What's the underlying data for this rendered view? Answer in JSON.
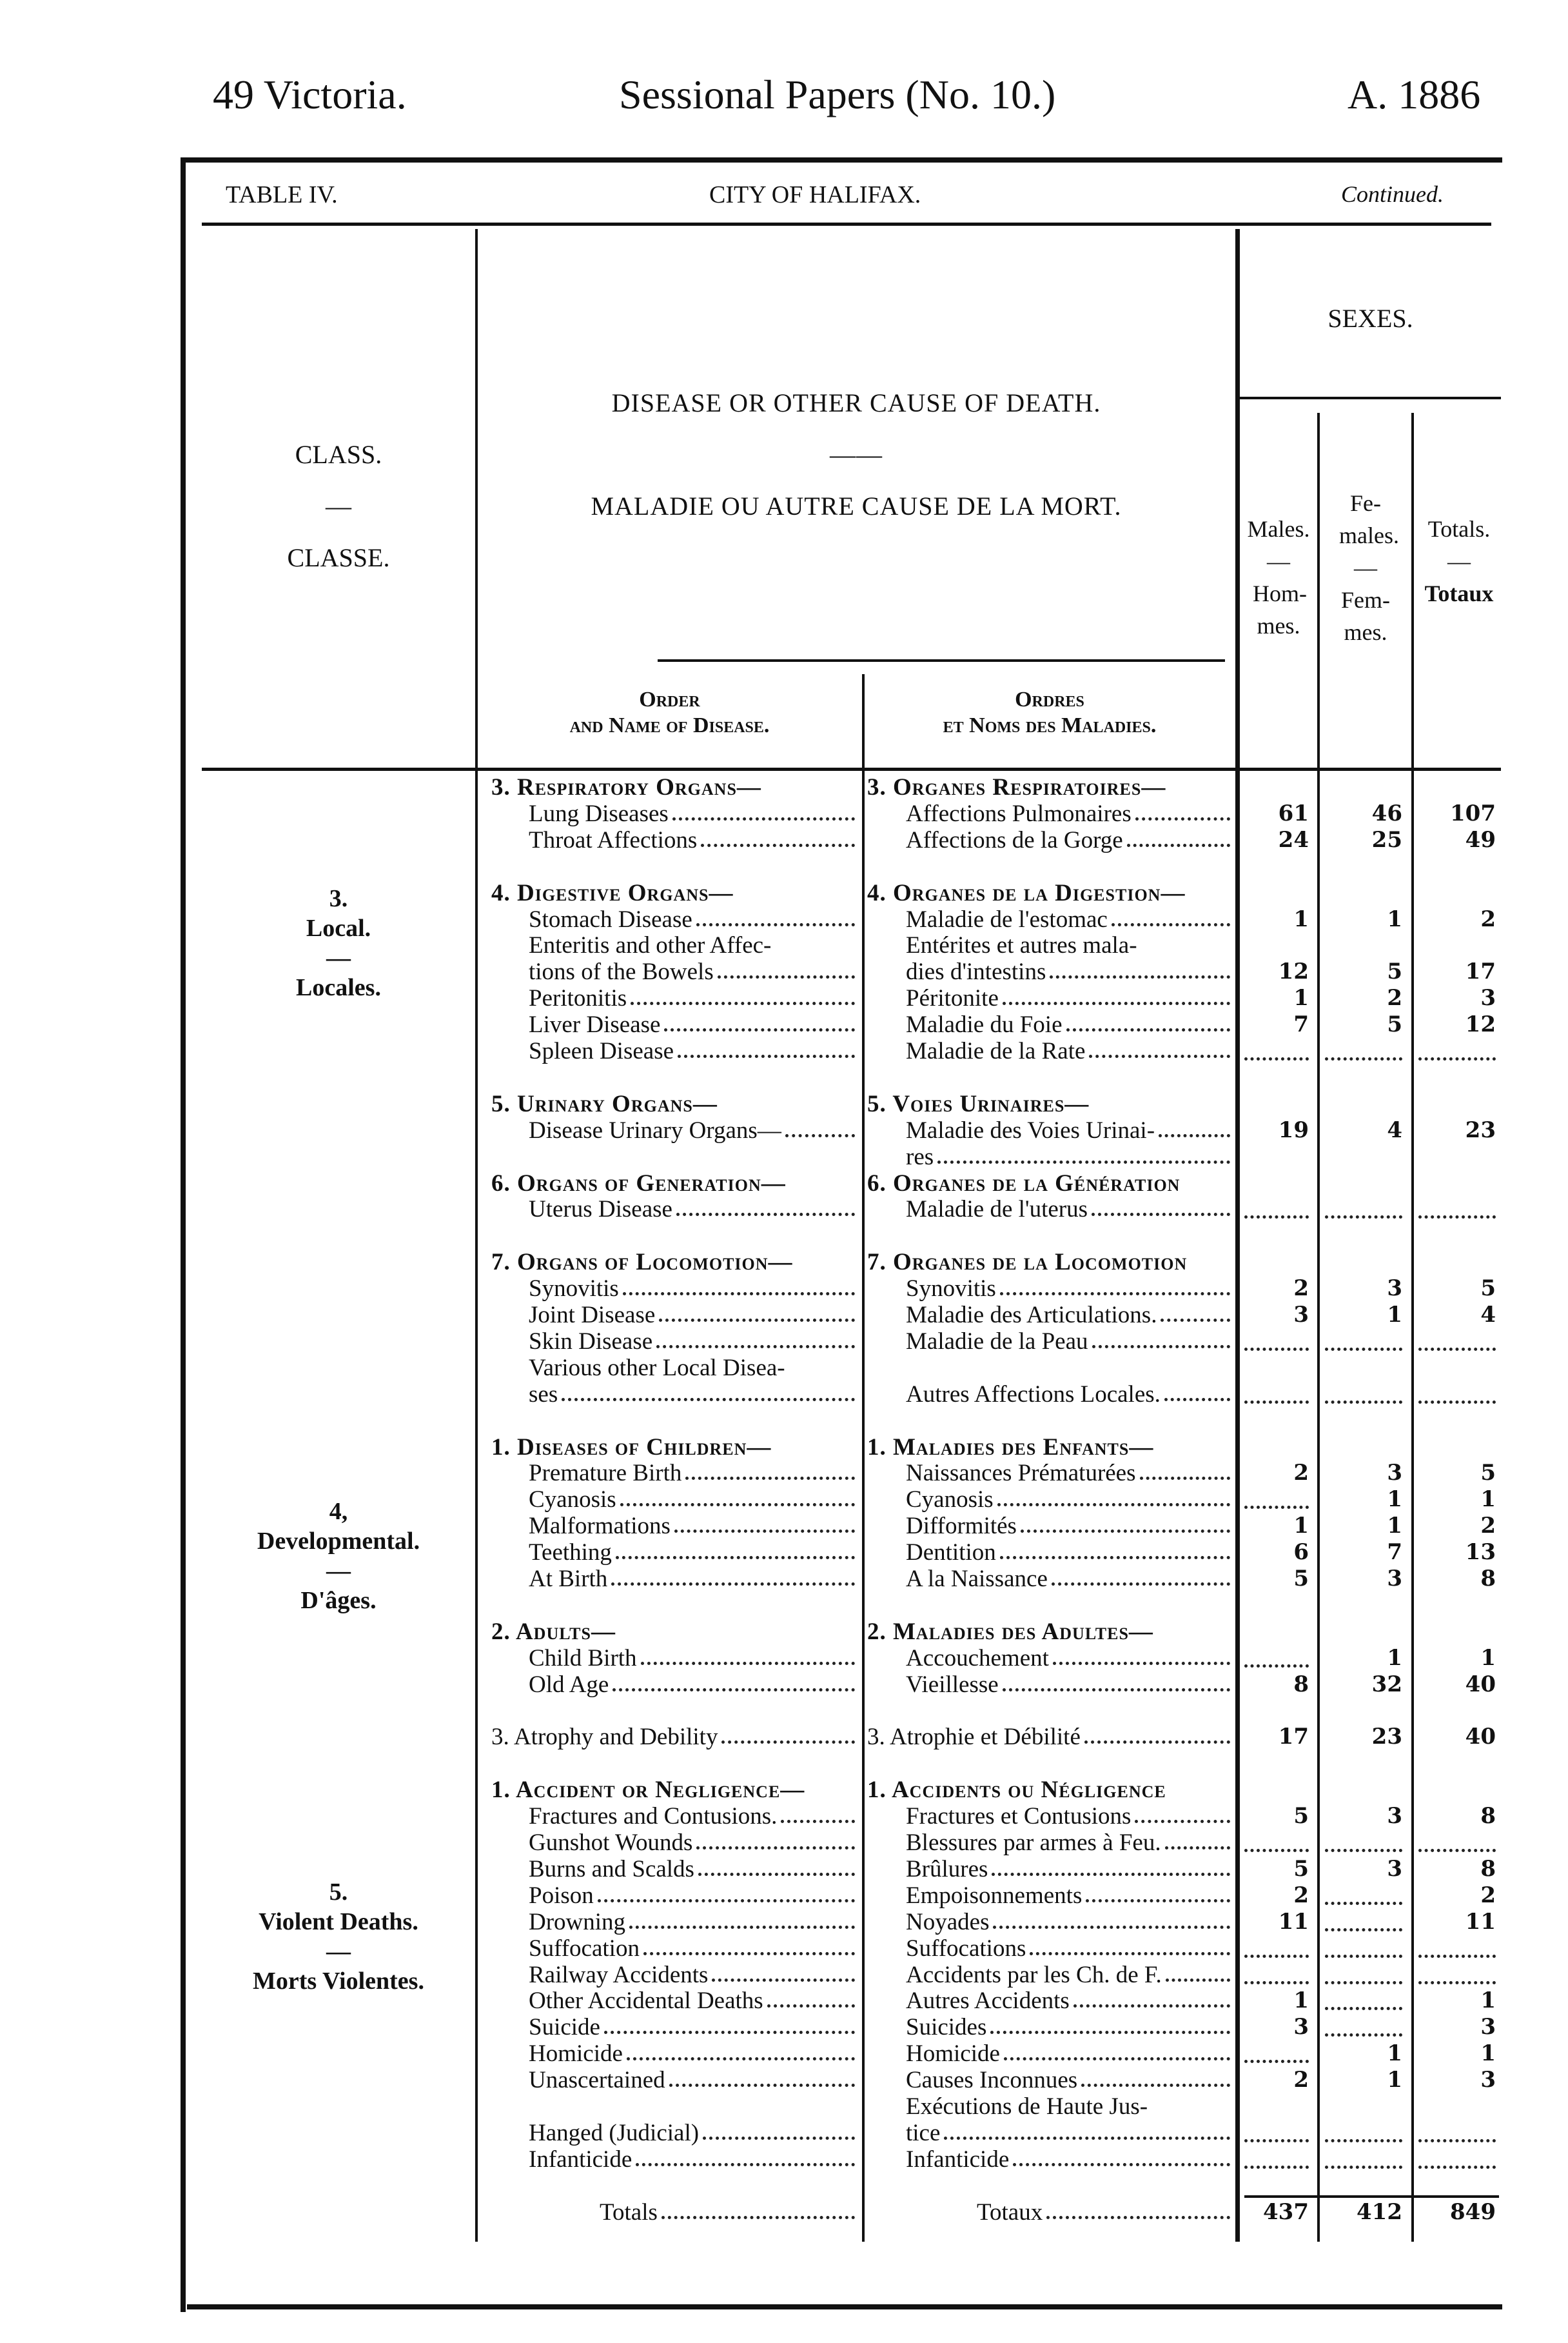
{
  "header": {
    "left": "49 Victoria.",
    "center": "Sessional Papers (No. 10.)",
    "right": "A. 1886"
  },
  "table": {
    "label": "TABLE IV.",
    "city": "CITY OF HALIFAX.",
    "continued": "Continued."
  },
  "columns": {
    "class_en": "CLASS.",
    "class_dash": "—",
    "class_fr": "CLASSE.",
    "disease_en": "DISEASE OR OTHER CAUSE OF DEATH.",
    "disease_dash": "——",
    "disease_fr": "MALADIE OU AUTRE CAUSE DE LA MORT.",
    "order_en_1": "Order",
    "order_en_2": "and Name of Disease.",
    "order_fr_1": "Ordres",
    "order_fr_2": "et Noms des Maladies.",
    "sexes": "SEXES.",
    "males": "Males.",
    "males_fr": "Hom-mes.",
    "females": "Fe-males.",
    "females_fr": "Fem-mes.",
    "totals": "Totals.",
    "totals_fr": "Totaux",
    "dash": "—"
  },
  "classes": [
    {
      "num": "3.",
      "en": "Local.",
      "dash": "—",
      "fr": "Locales."
    },
    {
      "num": "4,",
      "en": "Developmental.",
      "dash": "—",
      "fr": "D'âges."
    },
    {
      "num": "5.",
      "en": "Violent Deaths.",
      "dash": "—",
      "fr": "Morts Violentes."
    }
  ],
  "rows": [
    {
      "e": "3. Respiratory Organs—",
      "f": "3. Organes Respiratoires—",
      "h": 1
    },
    {
      "e": "Lung Diseases",
      "f": "Affections Pulmonaires",
      "m": "61",
      "fe": "46",
      "t": "107"
    },
    {
      "e": "Throat Affections",
      "f": "Affections de la Gorge",
      "m": "24",
      "fe": "25",
      "t": "49"
    },
    {},
    {
      "e": "4. Digestive Organs—",
      "f": "4. Organes de la Digestion—",
      "h": 1
    },
    {
      "e": "Stomach Disease",
      "f": "Maladie de l'estomac",
      "m": "1",
      "fe": "1",
      "t": "2"
    },
    {
      "e": "Enteritis and other Affec-",
      "f": "Entérites et autres mala-",
      "nl": 1
    },
    {
      "e": "tions of the Bowels",
      "f": "dies d'intestins",
      "m": "12",
      "fe": "5",
      "t": "17"
    },
    {
      "e": "Peritonitis",
      "f": "Péritonite",
      "m": "1",
      "fe": "2",
      "t": "3"
    },
    {
      "e": "Liver Disease",
      "f": "Maladie du Foie",
      "m": "7",
      "fe": "5",
      "t": "12"
    },
    {
      "e": "Spleen Disease",
      "f": "Maladie de la Rate",
      "m": "",
      "fe": "",
      "t": ""
    },
    {},
    {
      "e": "5. Urinary Organs—",
      "f": "5. Voies Urinaires—",
      "h": 1
    },
    {
      "e": "Disease Urinary Organs—",
      "f": "Maladie des Voies Urinai-",
      "m": "19",
      "fe": "4",
      "t": "23"
    },
    {
      "e": "",
      "f": "res"
    },
    {
      "e": "6. Organs of Generation—",
      "f": "6. Organes de la Génération",
      "h": 1
    },
    {
      "e": "Uterus Disease",
      "f": "Maladie de l'uterus",
      "m": "",
      "fe": "",
      "t": ""
    },
    {},
    {
      "e": "7. Organs of Locomotion—",
      "f": "7. Organes de la Locomotion",
      "h": 1
    },
    {
      "e": "Synovitis",
      "f": "Synovitis",
      "m": "2",
      "fe": "3",
      "t": "5"
    },
    {
      "e": "Joint Disease",
      "f": "Maladie des Articulations.",
      "m": "3",
      "fe": "1",
      "t": "4"
    },
    {
      "e": "Skin Disease",
      "f": "Maladie de la Peau",
      "m": "",
      "fe": "",
      "t": ""
    },
    {
      "e": "Various other Local Disea-",
      "f": "",
      "nl": 1
    },
    {
      "e": "ses",
      "f": "Autres Affections Locales.",
      "m": "",
      "fe": "",
      "t": ""
    },
    {},
    {
      "e": "1. Diseases of Children—",
      "f": "1. Maladies des Enfants—",
      "h": 1
    },
    {
      "e": "Premature Birth",
      "f": "Naissances Prématurées",
      "m": "2",
      "fe": "3",
      "t": "5"
    },
    {
      "e": "Cyanosis",
      "f": "Cyanosis",
      "m": "",
      "fe": "1",
      "t": "1"
    },
    {
      "e": "Malformations",
      "f": "Difformités",
      "m": "1",
      "fe": "1",
      "t": "2"
    },
    {
      "e": "Teething",
      "f": "Dentition",
      "m": "6",
      "fe": "7",
      "t": "13"
    },
    {
      "e": "At Birth",
      "f": "A la Naissance",
      "m": "5",
      "fe": "3",
      "t": "8"
    },
    {},
    {
      "e": "2. Adults—",
      "f": "2. Maladies des Adultes—",
      "h": 1
    },
    {
      "e": "Child Birth",
      "f": "Accouchement",
      "m": "",
      "fe": "1",
      "t": "1"
    },
    {
      "e": "Old Age",
      "f": "Vieillesse",
      "m": "8",
      "fe": "32",
      "t": "40"
    },
    {},
    {
      "e": "3. Atrophy and Debility",
      "f": "3. Atrophie et Débilité",
      "m": "17",
      "fe": "23",
      "t": "40"
    },
    {},
    {
      "e": "1. Accident or Negligence—",
      "f": "1. Accidents ou Négligence",
      "h": 1
    },
    {
      "e": "Fractures and Contusions.",
      "f": "Fractures et Contusions",
      "m": "5",
      "fe": "3",
      "t": "8"
    },
    {
      "e": "Gunshot Wounds",
      "f": "Blessures par armes à Feu.",
      "m": "",
      "fe": "",
      "t": ""
    },
    {
      "e": "Burns and Scalds",
      "f": "Brûlures",
      "m": "5",
      "fe": "3",
      "t": "8"
    },
    {
      "e": "Poison",
      "f": "Empoisonnements",
      "m": "2",
      "fe": "",
      "t": "2"
    },
    {
      "e": "Drowning",
      "f": "Noyades",
      "m": "11",
      "fe": "",
      "t": "11"
    },
    {
      "e": "Suffocation",
      "f": "Suffocations",
      "m": "",
      "fe": "",
      "t": ""
    },
    {
      "e": "Railway Accidents",
      "f": "Accidents par les Ch. de F.",
      "m": "",
      "fe": "",
      "t": ""
    },
    {
      "e": "Other Accidental Deaths",
      "f": "Autres Accidents",
      "m": "1",
      "fe": "",
      "t": "1"
    },
    {
      "e": "Suicide",
      "f": "Suicides",
      "m": "3",
      "fe": "",
      "t": "3"
    },
    {
      "e": "Homicide",
      "f": "Homicide",
      "m": "",
      "fe": "1",
      "t": "1"
    },
    {
      "e": "Unascertained",
      "f": "Causes Inconnues",
      "m": "2",
      "fe": "1",
      "t": "3"
    },
    {
      "e": "",
      "f": "Exécutions de Haute Jus-",
      "nl": 1
    },
    {
      "e": "Hanged (Judicial)",
      "f": "tice",
      "m": "",
      "fe": "",
      "t": ""
    },
    {
      "e": "Infanticide",
      "f": "Infanticide",
      "m": "",
      "fe": "",
      "t": ""
    },
    {},
    {
      "e": "Totals",
      "f": "Totaux",
      "m": "437",
      "fe": "412",
      "t": "849",
      "tot": 1
    }
  ]
}
